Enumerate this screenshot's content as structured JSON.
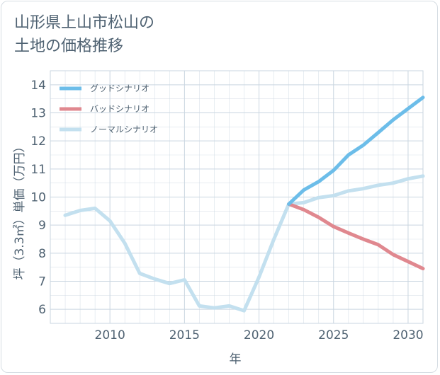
{
  "title": {
    "line1": "山形県上山市松山の",
    "line2": "土地の価格推移"
  },
  "colors": {
    "good": "#6cbde9",
    "bad": "#e0888f",
    "normal": "#c3e0ef",
    "grid": "#c9d5e0",
    "text": "#4f6272"
  },
  "chart_data": {
    "type": "line",
    "xlabel": "年",
    "ylabel": "坪（3.3㎡）単価（万円）",
    "xlim": [
      2006,
      2031
    ],
    "ylim": [
      5.5,
      14.5
    ],
    "xticks": [
      2010,
      2015,
      2020,
      2025,
      2030
    ],
    "yticks": [
      6,
      7,
      8,
      9,
      10,
      11,
      12,
      13,
      14
    ],
    "grid": true,
    "legend_position": "top-left",
    "series": [
      {
        "name": "グッドシナリオ",
        "color_key": "good",
        "x": [
          2022,
          2023,
          2024,
          2025,
          2026,
          2027,
          2028,
          2029,
          2030,
          2031
        ],
        "y": [
          9.75,
          10.25,
          10.55,
          10.95,
          11.5,
          11.85,
          12.3,
          12.75,
          13.15,
          13.55
        ]
      },
      {
        "name": "バッドシナリオ",
        "color_key": "bad",
        "x": [
          2022,
          2023,
          2024,
          2025,
          2026,
          2027,
          2028,
          2029,
          2030,
          2031
        ],
        "y": [
          9.75,
          9.55,
          9.28,
          8.95,
          8.72,
          8.5,
          8.3,
          7.95,
          7.7,
          7.45
        ]
      },
      {
        "name": "ノーマルシナリオ",
        "color_key": "normal",
        "x": [
          2007,
          2008,
          2009,
          2010,
          2011,
          2012,
          2013,
          2014,
          2015,
          2016,
          2017,
          2018,
          2019,
          2020,
          2021,
          2022,
          2023,
          2024,
          2025,
          2026,
          2027,
          2028,
          2029,
          2030,
          2031
        ],
        "y": [
          9.35,
          9.52,
          9.6,
          9.15,
          8.35,
          7.28,
          7.08,
          6.92,
          7.05,
          6.12,
          6.05,
          6.12,
          5.95,
          7.15,
          8.5,
          9.75,
          9.8,
          9.98,
          10.05,
          10.22,
          10.3,
          10.42,
          10.5,
          10.65,
          10.75
        ]
      }
    ]
  }
}
